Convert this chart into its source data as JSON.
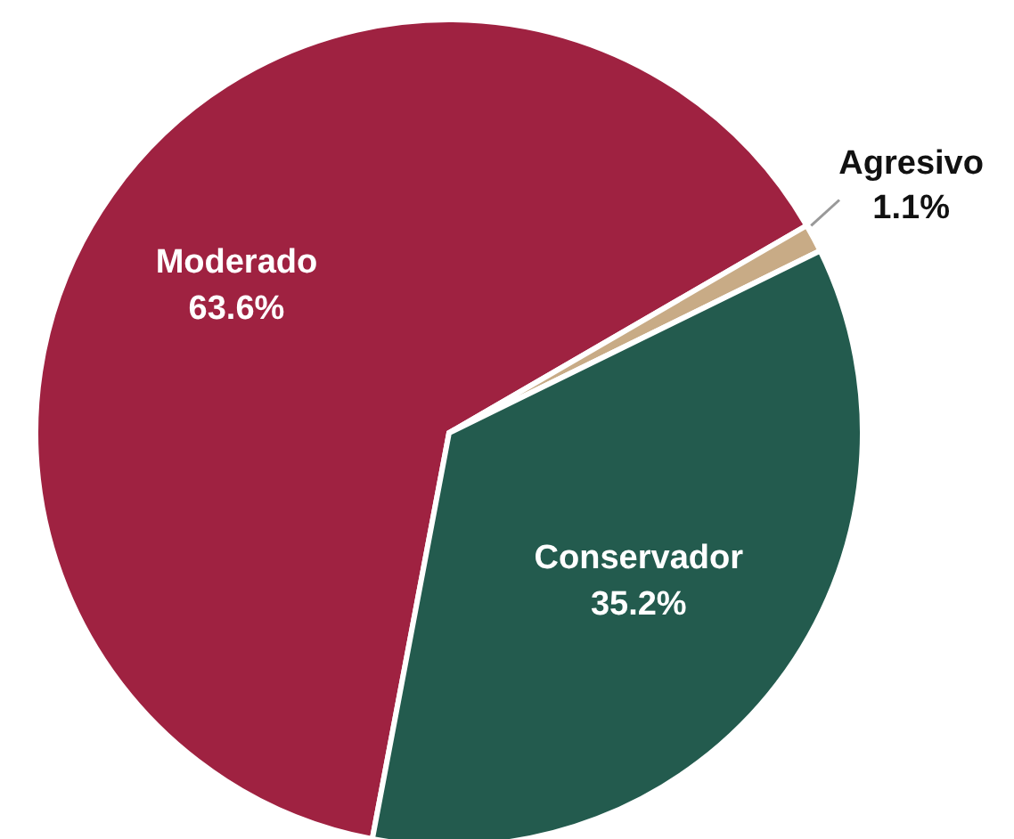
{
  "chart_data": {
    "type": "pie",
    "categories": [
      "Moderado",
      "Agresivo",
      "Conservador"
    ],
    "values": [
      63.6,
      1.1,
      35.2
    ],
    "colors": [
      "#9f2241",
      "#c8ab86",
      "#235b4e"
    ],
    "value_labels": [
      "63.6%",
      "1.1%",
      "35.2%"
    ],
    "legend": false
  }
}
